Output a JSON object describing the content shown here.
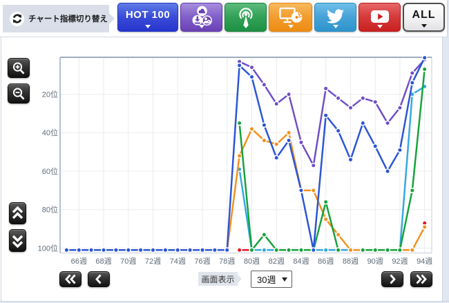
{
  "top_bar": {
    "switch_label": "チャート指標切り替え",
    "buttons": [
      {
        "id": "hot100",
        "label": "HOT 100",
        "color": "#2a3bd0"
      },
      {
        "id": "sales-downloads",
        "icon": "sales-downloads-icon",
        "color": "#6a41b5"
      },
      {
        "id": "radio-airplay",
        "icon": "radio-airplay-icon",
        "color": "#1e9044"
      },
      {
        "id": "pc-lookup",
        "icon": "pc-lookup-icon",
        "color": "#ee8c14"
      },
      {
        "id": "twitter",
        "icon": "twitter-icon",
        "color": "#2e94cd"
      },
      {
        "id": "youtube",
        "icon": "youtube-icon",
        "color": "#c92020"
      },
      {
        "id": "all",
        "label": "ALL",
        "color": "#e2e2e6"
      }
    ]
  },
  "side_controls": {
    "zoom_in_icon": "magnifier-plus",
    "zoom_out_icon": "magnifier-minus",
    "scroll_up_icon": "double-chevron-up",
    "scroll_down_icon": "double-chevron-down"
  },
  "bottom_bar": {
    "display_label": "画面表示",
    "range_select_value": "30週",
    "page_prev_fast_icon": "double-chevron-left",
    "page_prev_icon": "chevron-left",
    "page_next_icon": "chevron-right",
    "page_next_fast_icon": "double-chevron-right"
  },
  "chart_data": {
    "type": "line",
    "x_start_week": 65,
    "x_end_week": 94,
    "x_tick_suffix": "週",
    "y_tick_suffix": "位",
    "x_tick_weeks": [
      66,
      68,
      70,
      72,
      74,
      76,
      78,
      80,
      82,
      84,
      86,
      88,
      90,
      92,
      94
    ],
    "y_tick_positions": [
      20,
      40,
      60,
      80,
      100
    ],
    "y_axis_note": "position 1 at top, 100 at bottom, 101 = out of chart",
    "out_of_chart_value": 101,
    "grid": true,
    "legend_position": "none",
    "series": [
      {
        "name": "youtube",
        "color": "#e3192b",
        "values": [
          null,
          null,
          null,
          null,
          null,
          null,
          null,
          null,
          null,
          null,
          null,
          null,
          null,
          null,
          101,
          101,
          null,
          null,
          null,
          null,
          null,
          null,
          null,
          null,
          null,
          null,
          null,
          null,
          null,
          87
        ]
      },
      {
        "name": "twitter",
        "color": "#35a8e0",
        "values": [
          null,
          null,
          null,
          null,
          null,
          null,
          null,
          null,
          null,
          null,
          null,
          null,
          null,
          null,
          59,
          101,
          101,
          101,
          101,
          101,
          101,
          101,
          101,
          101,
          101,
          101,
          101,
          101,
          20,
          16
        ]
      },
      {
        "name": "pc-lookup",
        "color": "#f3911e",
        "values": [
          null,
          null,
          null,
          null,
          null,
          null,
          null,
          null,
          null,
          null,
          null,
          null,
          null,
          101,
          52,
          38,
          44,
          46,
          40,
          70,
          70,
          85,
          93,
          101,
          101,
          101,
          101,
          101,
          101,
          89
        ]
      },
      {
        "name": "radio-airplay",
        "color": "#17a23c",
        "values": [
          null,
          null,
          null,
          null,
          null,
          null,
          null,
          null,
          null,
          null,
          null,
          null,
          null,
          null,
          35,
          101,
          93,
          101,
          101,
          101,
          101,
          76,
          101,
          null,
          101,
          101,
          101,
          101,
          70,
          7
        ]
      },
      {
        "name": "sales-downloads",
        "color": "#6f4ec6",
        "values": [
          null,
          null,
          null,
          null,
          null,
          null,
          null,
          null,
          null,
          null,
          null,
          null,
          null,
          null,
          3,
          6,
          15,
          25,
          20,
          45,
          57,
          17,
          22,
          27,
          22,
          24,
          35,
          27,
          9,
          2
        ]
      },
      {
        "name": "hot100",
        "color": "#2b55d6",
        "values": [
          101,
          101,
          101,
          101,
          101,
          101,
          101,
          101,
          101,
          101,
          101,
          101,
          101,
          101,
          5,
          11,
          36,
          53,
          44,
          70,
          101,
          31,
          39,
          54,
          35,
          47,
          60,
          49,
          14,
          1
        ]
      }
    ]
  }
}
